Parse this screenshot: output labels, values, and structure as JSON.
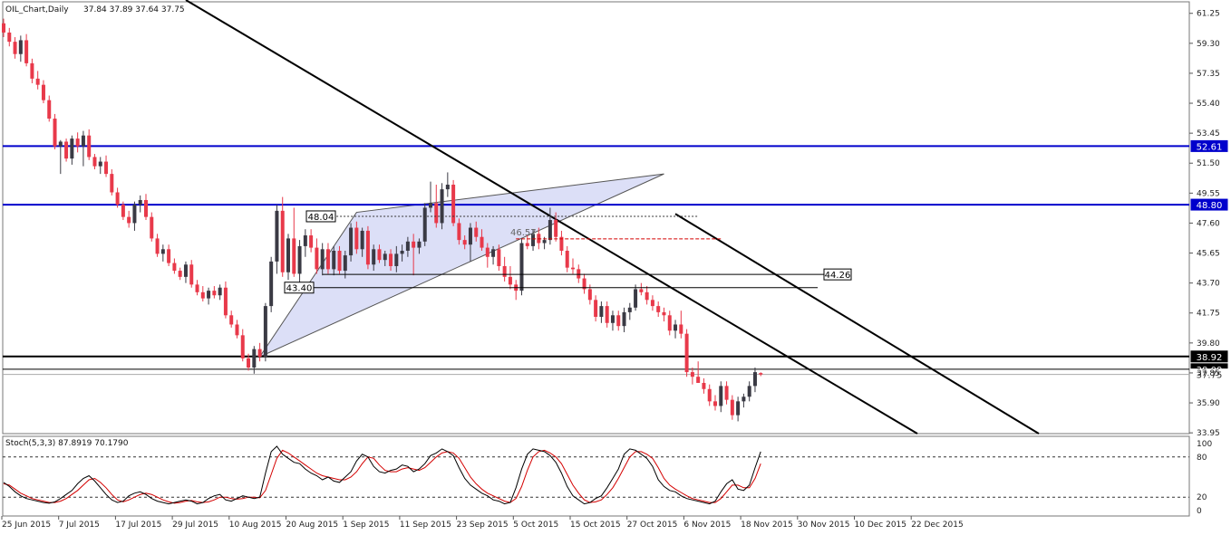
{
  "chart_data": {
    "type": "candlestick",
    "title": "OIL_Chart,Daily",
    "ohlc_text": "37.84 37.89 37.64 37.75",
    "ylim": [
      33.9,
      62.0
    ],
    "y_ticks": [
      "61.25",
      "59.30",
      "57.35",
      "55.40",
      "53.45",
      "51.50",
      "49.55",
      "47.60",
      "45.65",
      "43.70",
      "41.75",
      "39.80",
      "37.85",
      "35.90",
      "33.95"
    ],
    "x_labels": [
      "25 Jun 2015",
      "7 Jul 2015",
      "17 Jul 2015",
      "29 Jul 2015",
      "10 Aug 2015",
      "20 Aug 2015",
      "1 Sep 2015",
      "11 Sep 2015",
      "23 Sep 2015",
      "5 Oct 2015",
      "15 Oct 2015",
      "27 Oct 2015",
      "6 Nov 2015",
      "18 Nov 2015",
      "30 Nov 2015",
      "10 Dec 2015",
      "22 Dec 2015"
    ],
    "colors": {
      "bull": "#3a3a44",
      "bear": "#e8394a",
      "hline": "#0000cc",
      "trend": "#000000",
      "triangle": "#c9cef2",
      "stoch_main": "#000000",
      "stoch_signal": "#d40000"
    },
    "candles": [
      [
        60.6,
        60.9,
        59.7,
        60.0
      ],
      [
        60.0,
        60.3,
        59.1,
        59.4
      ],
      [
        59.4,
        59.7,
        58.3,
        58.6
      ],
      [
        58.6,
        59.8,
        58.1,
        59.5
      ],
      [
        59.5,
        59.9,
        57.8,
        58.0
      ],
      [
        58.0,
        58.3,
        56.7,
        57.0
      ],
      [
        57.0,
        57.5,
        56.3,
        56.6
      ],
      [
        56.6,
        56.9,
        55.4,
        55.6
      ],
      [
        55.6,
        55.9,
        54.2,
        54.4
      ],
      [
        54.4,
        54.7,
        52.4,
        52.6
      ],
      [
        52.6,
        53.0,
        50.8,
        52.9
      ],
      [
        52.9,
        53.1,
        51.6,
        51.8
      ],
      [
        51.8,
        53.3,
        51.4,
        53.1
      ],
      [
        53.1,
        53.5,
        52.2,
        52.6
      ],
      [
        52.6,
        53.6,
        51.3,
        53.3
      ],
      [
        53.3,
        53.7,
        51.7,
        51.9
      ],
      [
        51.9,
        52.1,
        51.1,
        51.3
      ],
      [
        51.3,
        51.9,
        50.8,
        51.6
      ],
      [
        51.6,
        52.0,
        50.6,
        50.8
      ],
      [
        50.8,
        51.1,
        49.4,
        49.6
      ],
      [
        49.6,
        49.9,
        48.6,
        48.8
      ],
      [
        48.8,
        49.0,
        47.8,
        48.0
      ],
      [
        48.0,
        48.4,
        47.3,
        47.6
      ],
      [
        47.6,
        49.0,
        47.1,
        48.8
      ],
      [
        48.8,
        49.4,
        48.3,
        49.1
      ],
      [
        49.1,
        49.5,
        47.8,
        48.0
      ],
      [
        48.0,
        48.3,
        46.4,
        46.6
      ],
      [
        46.6,
        46.9,
        45.4,
        45.6
      ],
      [
        45.6,
        46.2,
        45.1,
        45.9
      ],
      [
        45.9,
        46.2,
        44.8,
        45.0
      ],
      [
        45.0,
        45.3,
        44.3,
        44.5
      ],
      [
        44.5,
        44.7,
        43.9,
        44.1
      ],
      [
        44.1,
        45.1,
        43.7,
        44.9
      ],
      [
        44.9,
        45.2,
        43.4,
        43.6
      ],
      [
        43.6,
        43.9,
        42.9,
        43.1
      ],
      [
        43.1,
        43.5,
        42.5,
        42.7
      ],
      [
        42.7,
        43.4,
        42.3,
        43.2
      ],
      [
        43.2,
        43.5,
        42.7,
        42.9
      ],
      [
        42.9,
        43.6,
        42.6,
        43.4
      ],
      [
        43.4,
        43.8,
        41.4,
        41.6
      ],
      [
        41.6,
        41.9,
        40.8,
        41.0
      ],
      [
        41.0,
        41.3,
        40.1,
        40.3
      ],
      [
        40.3,
        40.7,
        38.6,
        38.8
      ],
      [
        38.8,
        39.1,
        38.0,
        38.2
      ],
      [
        38.2,
        39.6,
        37.8,
        39.4
      ],
      [
        39.4,
        39.8,
        38.6,
        38.9
      ],
      [
        38.9,
        42.4,
        38.6,
        42.2
      ],
      [
        42.2,
        45.4,
        41.8,
        45.1
      ],
      [
        45.1,
        48.8,
        44.3,
        48.4
      ],
      [
        48.4,
        49.3,
        44.1,
        44.4
      ],
      [
        44.4,
        46.9,
        43.9,
        46.6
      ],
      [
        46.6,
        48.6,
        44.1,
        44.3
      ],
      [
        44.3,
        46.5,
        43.6,
        46.1
      ],
      [
        46.1,
        47.2,
        45.4,
        46.8
      ],
      [
        46.8,
        47.2,
        45.7,
        46.0
      ],
      [
        46.0,
        46.6,
        44.3,
        44.6
      ],
      [
        44.6,
        46.3,
        44.2,
        45.9
      ],
      [
        45.9,
        46.3,
        44.3,
        44.6
      ],
      [
        44.6,
        46.1,
        44.2,
        45.8
      ],
      [
        45.8,
        46.1,
        44.3,
        44.5
      ],
      [
        44.5,
        45.8,
        44.0,
        45.5
      ],
      [
        45.5,
        47.6,
        45.1,
        47.3
      ],
      [
        47.3,
        47.7,
        45.6,
        45.9
      ],
      [
        45.9,
        47.3,
        45.4,
        47.1
      ],
      [
        47.1,
        47.4,
        44.6,
        44.9
      ],
      [
        44.9,
        46.2,
        44.5,
        45.9
      ],
      [
        45.9,
        46.2,
        45.0,
        45.2
      ],
      [
        45.2,
        45.8,
        44.8,
        45.6
      ],
      [
        45.6,
        45.9,
        44.5,
        44.8
      ],
      [
        44.8,
        46.1,
        44.4,
        45.6
      ],
      [
        45.6,
        46.2,
        45.1,
        45.8
      ],
      [
        45.8,
        46.7,
        45.4,
        46.4
      ],
      [
        46.4,
        46.9,
        44.2,
        46.0
      ],
      [
        46.0,
        46.6,
        45.6,
        46.4
      ],
      [
        46.4,
        48.9,
        46.1,
        48.6
      ],
      [
        48.6,
        50.3,
        48.3,
        48.9
      ],
      [
        48.9,
        50.1,
        47.3,
        47.6
      ],
      [
        47.6,
        50.2,
        47.2,
        49.8
      ],
      [
        49.8,
        50.9,
        49.3,
        50.1
      ],
      [
        50.1,
        50.4,
        47.4,
        47.6
      ],
      [
        47.6,
        47.9,
        46.2,
        46.5
      ],
      [
        46.5,
        46.8,
        45.9,
        46.2
      ],
      [
        46.2,
        47.6,
        45.1,
        47.3
      ],
      [
        47.3,
        47.7,
        46.4,
        46.7
      ],
      [
        46.7,
        47.2,
        45.8,
        46.0
      ],
      [
        46.0,
        46.3,
        44.7,
        45.4
      ],
      [
        45.4,
        46.1,
        44.9,
        45.9
      ],
      [
        45.9,
        46.2,
        44.5,
        44.8
      ],
      [
        44.8,
        45.4,
        43.8,
        44.1
      ],
      [
        44.1,
        44.8,
        43.3,
        43.6
      ],
      [
        43.6,
        43.9,
        42.6,
        43.2
      ],
      [
        43.2,
        46.6,
        42.9,
        46.3
      ],
      [
        46.3,
        46.8,
        45.9,
        46.1
      ],
      [
        46.1,
        47.2,
        45.8,
        46.9
      ],
      [
        46.9,
        47.3,
        45.9,
        46.3
      ],
      [
        46.3,
        46.7,
        45.9,
        46.5
      ],
      [
        46.5,
        48.6,
        46.2,
        47.8
      ],
      [
        47.8,
        48.3,
        46.4,
        46.7
      ],
      [
        46.7,
        47.1,
        45.5,
        45.8
      ],
      [
        45.8,
        46.1,
        44.4,
        44.7
      ],
      [
        44.7,
        45.3,
        44.3,
        44.6
      ],
      [
        44.6,
        44.9,
        43.7,
        44.0
      ],
      [
        44.0,
        44.3,
        43.0,
        43.3
      ],
      [
        43.3,
        43.6,
        42.3,
        42.6
      ],
      [
        42.6,
        42.9,
        41.2,
        41.5
      ],
      [
        41.5,
        42.5,
        41.1,
        42.2
      ],
      [
        42.2,
        42.5,
        40.8,
        41.1
      ],
      [
        41.1,
        41.9,
        40.6,
        41.6
      ],
      [
        41.6,
        41.9,
        40.6,
        40.9
      ],
      [
        40.9,
        42.1,
        40.5,
        41.8
      ],
      [
        41.8,
        42.4,
        41.3,
        42.1
      ],
      [
        42.1,
        43.6,
        41.9,
        43.3
      ],
      [
        43.3,
        43.7,
        42.9,
        43.1
      ],
      [
        43.1,
        43.5,
        42.3,
        42.6
      ],
      [
        42.6,
        42.9,
        41.9,
        42.2
      ],
      [
        42.2,
        42.5,
        41.5,
        41.8
      ],
      [
        41.8,
        42.1,
        41.2,
        41.6
      ],
      [
        41.6,
        41.9,
        40.3,
        40.6
      ],
      [
        40.6,
        41.3,
        40.1,
        41.0
      ],
      [
        41.0,
        41.9,
        40.1,
        40.4
      ],
      [
        40.4,
        40.7,
        37.6,
        37.9
      ],
      [
        37.9,
        38.2,
        37.1,
        37.6
      ],
      [
        37.6,
        38.6,
        37.3,
        37.2
      ],
      [
        37.2,
        37.5,
        36.5,
        36.8
      ],
      [
        36.8,
        37.1,
        35.7,
        36.0
      ],
      [
        36.0,
        36.4,
        35.4,
        35.7
      ],
      [
        35.7,
        37.3,
        35.3,
        37.0
      ],
      [
        37.0,
        37.3,
        35.8,
        36.1
      ],
      [
        36.1,
        36.4,
        34.8,
        35.1
      ],
      [
        35.1,
        36.3,
        34.7,
        36.0
      ],
      [
        36.0,
        36.5,
        35.6,
        36.3
      ],
      [
        36.3,
        37.3,
        36.0,
        37.0
      ],
      [
        37.0,
        38.2,
        36.6,
        37.9
      ],
      [
        37.84,
        37.89,
        37.64,
        37.75
      ]
    ],
    "horizontal_levels": [
      {
        "value": 52.61,
        "label": "52.61",
        "color": "#0000cc",
        "style": "solid-thick"
      },
      {
        "value": 48.8,
        "label": "48.80",
        "color": "#0000cc",
        "style": "solid-thick"
      },
      {
        "value": 38.92,
        "label": "38.92",
        "color": "#000000",
        "style": "solid-thick"
      },
      {
        "value": 38.09,
        "label": "38.09",
        "color": "#000000",
        "style": "solid"
      },
      {
        "value": 37.75,
        "label": "37.75",
        "color": "#000000",
        "style": "bid"
      }
    ],
    "annotations": [
      {
        "label": "48.04",
        "value": 48.04
      },
      {
        "label": "43.40",
        "value": 43.4
      },
      {
        "label": "44.26",
        "value": 44.26
      },
      {
        "label": "46.57",
        "value": 46.57
      }
    ],
    "stoch": {
      "label": "Stoch(5,3,3) 87.8919 70.1790",
      "ylim": [
        0,
        100
      ],
      "ticks": [
        "100",
        "80",
        "20",
        "0"
      ],
      "levels": [
        80,
        20
      ],
      "main": [
        42,
        36,
        28,
        22,
        18,
        16,
        14,
        12,
        11,
        13,
        18,
        24,
        30,
        40,
        48,
        52,
        44,
        34,
        24,
        16,
        12,
        14,
        22,
        26,
        28,
        24,
        18,
        14,
        12,
        10,
        12,
        14,
        16,
        14,
        10,
        12,
        18,
        22,
        24,
        16,
        14,
        18,
        22,
        20,
        18,
        20,
        56,
        88,
        96,
        84,
        78,
        72,
        70,
        62,
        56,
        52,
        46,
        50,
        44,
        42,
        50,
        58,
        74,
        84,
        80,
        66,
        58,
        56,
        60,
        62,
        68,
        66,
        58,
        62,
        70,
        82,
        86,
        92,
        88,
        82,
        64,
        48,
        38,
        32,
        26,
        22,
        16,
        14,
        10,
        12,
        34,
        62,
        84,
        92,
        90,
        88,
        82,
        72,
        56,
        36,
        22,
        16,
        10,
        12,
        18,
        22,
        34,
        48,
        62,
        84,
        92,
        90,
        84,
        78,
        66,
        46,
        36,
        30,
        28,
        22,
        18,
        16,
        14,
        12,
        10,
        14,
        28,
        40,
        46,
        32,
        30,
        38,
        64,
        88
      ],
      "signal": [
        40,
        38,
        32,
        26,
        22,
        18,
        16,
        14,
        12,
        12,
        14,
        18,
        24,
        30,
        38,
        46,
        48,
        42,
        34,
        24,
        16,
        13,
        16,
        20,
        24,
        26,
        24,
        20,
        16,
        13,
        11,
        12,
        14,
        15,
        13,
        12,
        13,
        16,
        20,
        20,
        18,
        17,
        18,
        20,
        20,
        19,
        30,
        54,
        78,
        90,
        86,
        80,
        74,
        68,
        62,
        56,
        52,
        50,
        48,
        46,
        46,
        50,
        58,
        70,
        80,
        78,
        68,
        60,
        58,
        58,
        62,
        64,
        62,
        60,
        64,
        72,
        80,
        86,
        88,
        86,
        78,
        64,
        50,
        40,
        32,
        26,
        22,
        18,
        14,
        12,
        18,
        36,
        60,
        80,
        88,
        90,
        86,
        80,
        70,
        54,
        38,
        26,
        16,
        12,
        13,
        16,
        24,
        34,
        48,
        64,
        80,
        88,
        88,
        84,
        78,
        64,
        48,
        38,
        32,
        27,
        22,
        18,
        16,
        14,
        12,
        12,
        18,
        28,
        38,
        38,
        34,
        34,
        48,
        70
      ]
    }
  }
}
